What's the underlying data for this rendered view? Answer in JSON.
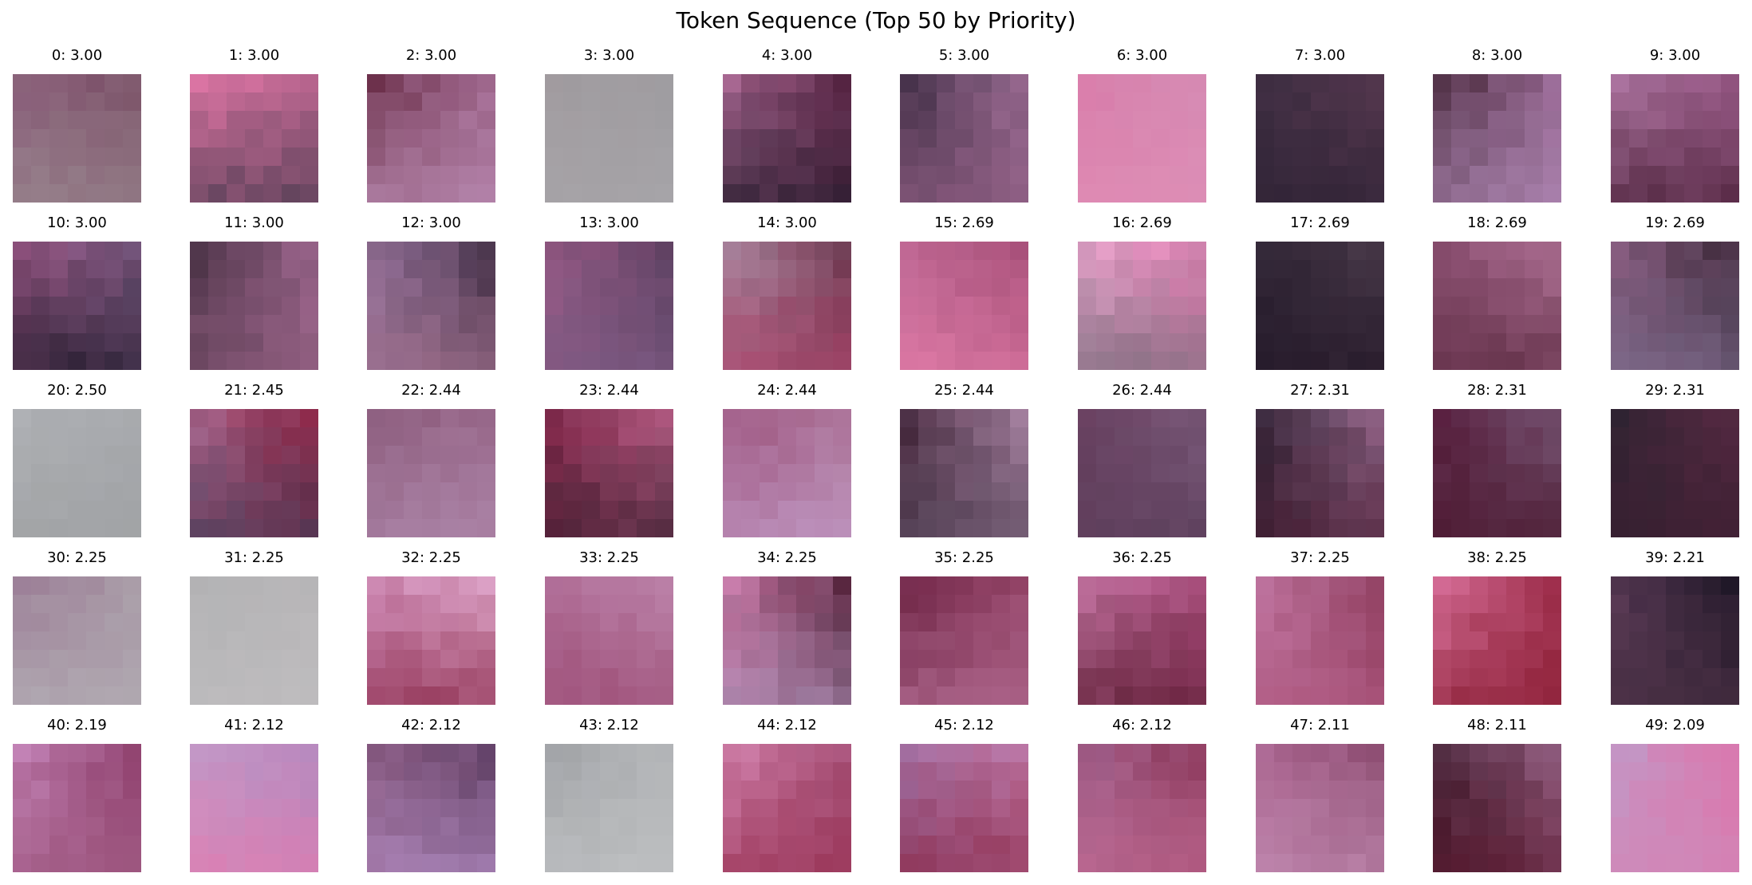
{
  "title": "Token Sequence (Top 50 by Priority)",
  "tokens": [
    {
      "index": 0,
      "priority": "3.00",
      "colors": [
        "#8a5e7a",
        "#7a5066",
        "#9a8a90"
      ]
    },
    {
      "index": 1,
      "priority": "3.00",
      "colors": [
        "#e478a8",
        "#c46a96",
        "#4a3a4e"
      ]
    },
    {
      "index": 2,
      "priority": "3.00",
      "colors": [
        "#6a2e48",
        "#a46c94",
        "#b88ab0"
      ]
    },
    {
      "index": 3,
      "priority": "3.00",
      "colors": [
        "#a09a9e",
        "#9e9ca0",
        "#a8a6aa"
      ]
    },
    {
      "index": 4,
      "priority": "3.00",
      "colors": [
        "#b06c98",
        "#5a2444",
        "#2a1e30"
      ]
    },
    {
      "index": 5,
      "priority": "3.00",
      "colors": [
        "#3a2a40",
        "#a07098",
        "#8a5a7e"
      ]
    },
    {
      "index": 6,
      "priority": "3.00",
      "colors": [
        "#d87aa8",
        "#d48cb4",
        "#e08eb6"
      ]
    },
    {
      "index": 7,
      "priority": "3.00",
      "colors": [
        "#3e2e42",
        "#5a3a52",
        "#2e2234"
      ]
    },
    {
      "index": 8,
      "priority": "3.00",
      "colors": [
        "#3e2030",
        "#9a6a96",
        "#b08ab6"
      ]
    },
    {
      "index": 9,
      "priority": "3.00",
      "colors": [
        "#b27aa6",
        "#9a5a88",
        "#4a2038"
      ]
    },
    {
      "index": 10,
      "priority": "3.00",
      "colors": [
        "#9a5684",
        "#7a5a82",
        "#1e1828"
      ]
    },
    {
      "index": 11,
      "priority": "3.00",
      "colors": [
        "#3a2838",
        "#a06890",
        "#8a5a7a"
      ]
    },
    {
      "index": 12,
      "priority": "3.00",
      "colors": [
        "#9a76a0",
        "#3a2a40",
        "#a0708c"
      ]
    },
    {
      "index": 13,
      "priority": "3.00",
      "colors": [
        "#9a5a86",
        "#5a3e5e",
        "#7a5a82"
      ]
    },
    {
      "index": 14,
      "priority": "3.00",
      "colors": [
        "#b08ca6",
        "#6a3a50",
        "#a84268"
      ]
    },
    {
      "index": 15,
      "priority": "2.69",
      "colors": [
        "#c06a96",
        "#a04a72",
        "#e07aa6"
      ]
    },
    {
      "index": 16,
      "priority": "2.69",
      "colors": [
        "#e8aad0",
        "#e07cb0",
        "#7a6a7a"
      ]
    },
    {
      "index": 17,
      "priority": "2.69",
      "colors": [
        "#2e2434",
        "#4a3a4a",
        "#241828"
      ]
    },
    {
      "index": 18,
      "priority": "2.69",
      "colors": [
        "#8a4e70",
        "#b07296",
        "#5a2a40"
      ]
    },
    {
      "index": 19,
      "priority": "2.69",
      "colors": [
        "#8a5a7e",
        "#3a2838",
        "#7a6a8a"
      ]
    },
    {
      "index": 20,
      "priority": "2.50",
      "colors": [
        "#b0b2b6",
        "#a8aaae",
        "#9ea0a2"
      ]
    },
    {
      "index": 21,
      "priority": "2.45",
      "colors": [
        "#b06c94",
        "#8a1e3e",
        "#4a3a56"
      ]
    },
    {
      "index": 22,
      "priority": "2.44",
      "colors": [
        "#8a5a7a",
        "#9a6a8c",
        "#b08aae"
      ]
    },
    {
      "index": 23,
      "priority": "2.44",
      "colors": [
        "#8a2a4e",
        "#c0648e",
        "#3a1e2e"
      ]
    },
    {
      "index": 24,
      "priority": "2.44",
      "colors": [
        "#9a4e78",
        "#b07ca0",
        "#c098c4"
      ]
    },
    {
      "index": 25,
      "priority": "2.44",
      "colors": [
        "#3e2034",
        "#b08aaa",
        "#5a4a5e"
      ]
    },
    {
      "index": 26,
      "priority": "2.44",
      "colors": [
        "#6a4060",
        "#7a5a7a",
        "#5a3e5a"
      ]
    },
    {
      "index": 27,
      "priority": "2.31",
      "colors": [
        "#2a2232",
        "#a07096",
        "#4a1e34"
      ]
    },
    {
      "index": 28,
      "priority": "2.31",
      "colors": [
        "#5a2040",
        "#7a5a7a",
        "#4a1a30"
      ]
    },
    {
      "index": 29,
      "priority": "2.31",
      "colors": [
        "#2e2432",
        "#5a2a44",
        "#3a1e30"
      ]
    },
    {
      "index": 30,
      "priority": "2.25",
      "colors": [
        "#9a7a94",
        "#a89aa6",
        "#b4b0b6"
      ]
    },
    {
      "index": 31,
      "priority": "2.25",
      "colors": [
        "#b0b0b2",
        "#b8b6b8",
        "#c0bec0"
      ]
    },
    {
      "index": 32,
      "priority": "2.25",
      "colors": [
        "#d08cb8",
        "#e0a8cc",
        "#8a2a4a"
      ]
    },
    {
      "index": 33,
      "priority": "2.25",
      "colors": [
        "#b06e98",
        "#c08ab0",
        "#9a4a72"
      ]
    },
    {
      "index": 34,
      "priority": "2.25",
      "colors": [
        "#d07aaa",
        "#4a1a30",
        "#a88ab0"
      ]
    },
    {
      "index": 35,
      "priority": "2.25",
      "colors": [
        "#6a2040",
        "#9a4a6e",
        "#b06a90"
      ]
    },
    {
      "index": 36,
      "priority": "2.25",
      "colors": [
        "#c87aa8",
        "#a84a7a",
        "#5a1a30"
      ]
    },
    {
      "index": 37,
      "priority": "2.25",
      "colors": [
        "#c47aa6",
        "#8a3a5a",
        "#b05a82"
      ]
    },
    {
      "index": 38,
      "priority": "2.25",
      "colors": [
        "#e07aa6",
        "#a0304e",
        "#8a1e34"
      ]
    },
    {
      "index": 39,
      "priority": "2.21",
      "colors": [
        "#5a3a56",
        "#1e1626",
        "#4a3044"
      ]
    },
    {
      "index": 40,
      "priority": "2.19",
      "colors": [
        "#c484b8",
        "#8a3a66",
        "#a05a82"
      ]
    },
    {
      "index": 41,
      "priority": "2.12",
      "colors": [
        "#c49ac8",
        "#b08ac0",
        "#e07cb0"
      ]
    },
    {
      "index": 42,
      "priority": "2.12",
      "colors": [
        "#8a5a80",
        "#5a3a5e",
        "#b08ac0"
      ]
    },
    {
      "index": 43,
      "priority": "2.12",
      "colors": [
        "#a0a2a6",
        "#b4b6b8",
        "#c0c2c4"
      ]
    },
    {
      "index": 44,
      "priority": "2.12",
      "colors": [
        "#d88ab6",
        "#a04a70",
        "#9a3456"
      ]
    },
    {
      "index": 45,
      "priority": "2.12",
      "colors": [
        "#a070a4",
        "#c47aa8",
        "#8a2a4a"
      ]
    },
    {
      "index": 46,
      "priority": "2.12",
      "colors": [
        "#a0628e",
        "#8a3456",
        "#c06a92"
      ]
    },
    {
      "index": 47,
      "priority": "2.11",
      "colors": [
        "#b06a96",
        "#8a4a6e",
        "#c08ab0"
      ]
    },
    {
      "index": 48,
      "priority": "2.11",
      "colors": [
        "#3a1a2a",
        "#a06a90",
        "#5a1a30"
      ]
    },
    {
      "index": 49,
      "priority": "2.09",
      "colors": [
        "#c09ac8",
        "#e070a8",
        "#d088b8"
      ]
    }
  ]
}
